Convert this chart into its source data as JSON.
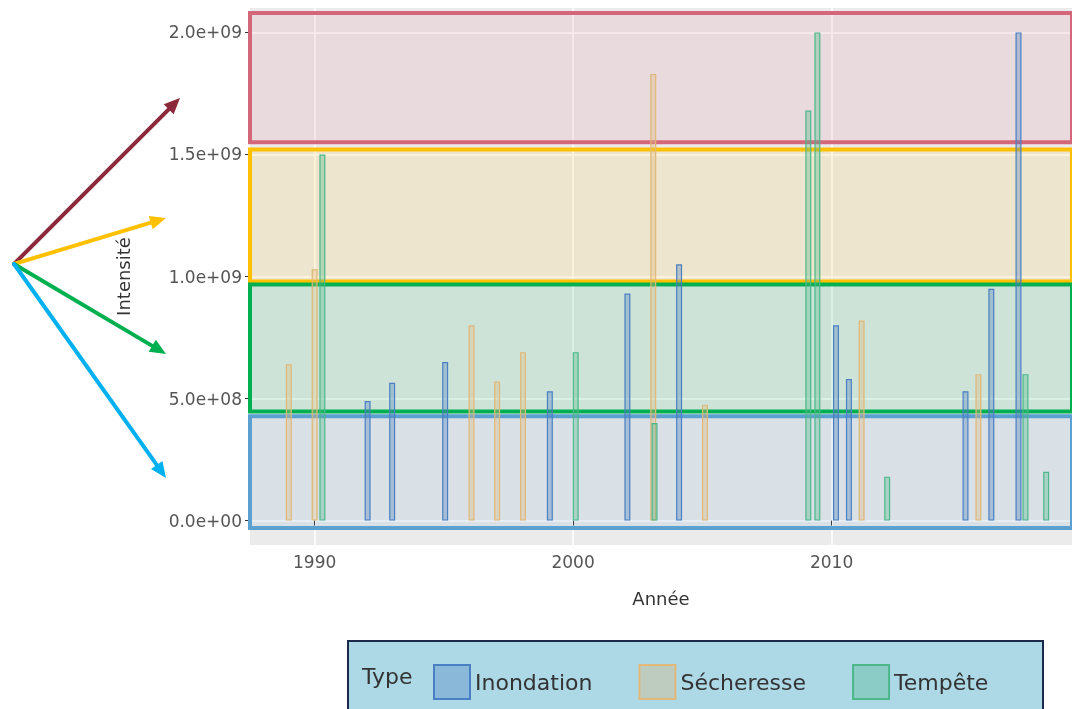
{
  "chart_data": {
    "type": "bar",
    "xlabel": "Année",
    "ylabel": "Intensité",
    "legend_title": "Type",
    "legend": "bottom",
    "grid": true,
    "xlim": [
      1987.5,
      2019.3
    ],
    "xticks": [
      1990,
      2000,
      2010
    ],
    "ylim": [
      -100000000,
      2100000000
    ],
    "yticks": [
      {
        "value": 0,
        "label": "0.0e+00"
      },
      {
        "value": 500000000,
        "label": "5.0e+08"
      },
      {
        "value": 1000000000,
        "label": "1.0e+09"
      },
      {
        "value": 1500000000,
        "label": "1.5e+09"
      },
      {
        "value": 2000000000,
        "label": "2.0e+09"
      }
    ],
    "series": [
      {
        "name": "Inondation",
        "color": "#4a7fc1",
        "x": [
          1992.05,
          1993.0,
          1995.05,
          1999.1,
          2002.1,
          2004.1,
          2010.17,
          2010.67,
          2015.18,
          2016.18,
          2017.23
        ],
        "values": [
          490000000,
          565000000,
          650000000,
          530000000,
          930000000,
          1050000000,
          800000000,
          580000000,
          530000000,
          950000000,
          2000000000
        ]
      },
      {
        "name": "Sécheresse",
        "color": "#e0b878",
        "x": [
          1989.0,
          1990.0,
          1996.07,
          1997.06,
          1998.06,
          2003.1,
          2005.1,
          2011.16,
          2015.68
        ],
        "values": [
          640000000,
          1030000000,
          800000000,
          570000000,
          690000000,
          1830000000,
          475000000,
          820000000,
          600000000
        ]
      },
      {
        "name": "Tempête",
        "color": "#4cb88a",
        "x": [
          1990.3,
          2000.1,
          2003.15,
          2009.1,
          2009.45,
          2012.15,
          2017.5,
          2018.3
        ],
        "values": [
          1500000000,
          690000000,
          400000000,
          1680000000,
          2000000000,
          180000000,
          600000000,
          200000000
        ]
      }
    ],
    "bands": [
      {
        "axis": "y",
        "from": 1550000000,
        "to": 2080000000,
        "color": "#d4667a"
      },
      {
        "axis": "y",
        "from": 980000000,
        "to": 1520000000,
        "color": "#ffc000"
      },
      {
        "axis": "y",
        "from": 447000000,
        "to": 967000000,
        "color": "#00b050"
      },
      {
        "axis": "y",
        "from": -30000000,
        "to": 427000000,
        "color": "#5aa0d0"
      }
    ]
  }
}
